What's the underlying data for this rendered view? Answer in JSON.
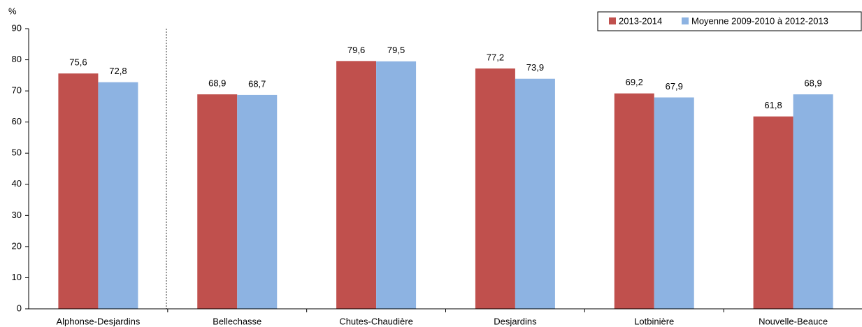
{
  "chart_data": {
    "type": "bar",
    "y_label": "%",
    "categories": [
      "Alphonse-Desjardins",
      "Bellechasse",
      "Chutes-Chaudière",
      "Desjardins",
      "Lotbinière",
      "Nouvelle-Beauce"
    ],
    "series": [
      {
        "name": "2013-2014",
        "color": "#c0504d",
        "values": [
          75.6,
          68.9,
          79.6,
          77.2,
          69.2,
          61.8
        ],
        "value_labels": [
          "75,6",
          "68,9",
          "79,6",
          "77,2",
          "69,2",
          "61,8"
        ]
      },
      {
        "name": "Moyenne 2009-2010 à 2012-2013",
        "color": "#8db3e2",
        "values": [
          72.8,
          68.7,
          79.5,
          73.9,
          67.9,
          68.9
        ],
        "value_labels": [
          "72,8",
          "68,7",
          "79,5",
          "73,9",
          "67,9",
          "68,9"
        ]
      }
    ],
    "ylim": [
      0,
      90
    ],
    "yticks": [
      0,
      10,
      20,
      30,
      40,
      50,
      60,
      70,
      80,
      90
    ]
  }
}
